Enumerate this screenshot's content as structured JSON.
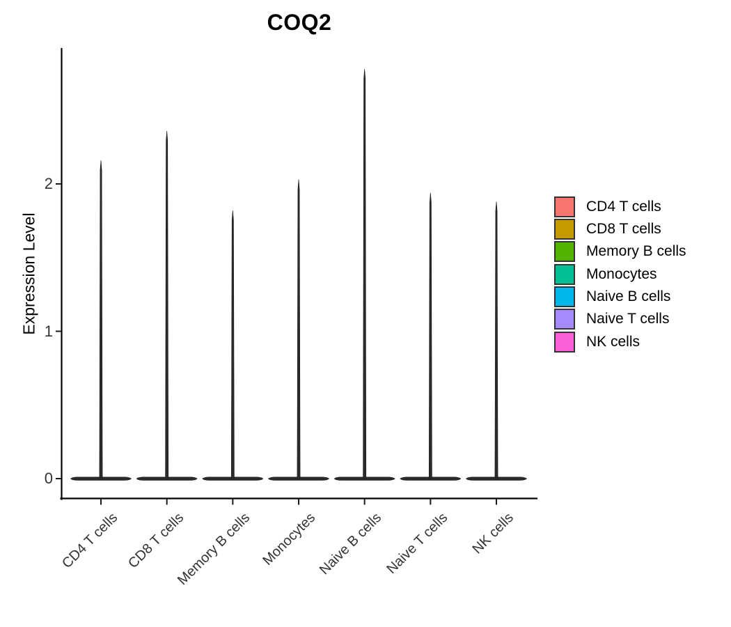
{
  "title": "COQ2",
  "axes": {
    "y_label": "Expression Level",
    "y_ticks": [
      "0",
      "1",
      "2"
    ],
    "x_tick_labels": [
      "CD4 T cells",
      "CD8 T cells",
      "Memory B cells",
      "Monocytes",
      "Naive B cells",
      "Naive T cells",
      "NK cells"
    ]
  },
  "legend": {
    "items": [
      {
        "label": "CD4 T cells",
        "color": "#F8766D"
      },
      {
        "label": "CD8 T cells",
        "color": "#C49A00"
      },
      {
        "label": "Memory B cells",
        "color": "#53B400"
      },
      {
        "label": "Monocytes",
        "color": "#00C094"
      },
      {
        "label": "Naive B cells",
        "color": "#00B6EB"
      },
      {
        "label": "Naive T cells",
        "color": "#A58AFF"
      },
      {
        "label": "NK cells",
        "color": "#FB61D7"
      }
    ]
  },
  "chart_data": {
    "type": "violin",
    "title": "COQ2",
    "xlabel": "",
    "ylabel": "Expression Level",
    "categories": [
      "CD4 T cells",
      "CD8 T cells",
      "Memory B cells",
      "Monocytes",
      "Naive B cells",
      "Naive T cells",
      "NK cells"
    ],
    "series": [
      {
        "name": "max_expression",
        "values": [
          2.16,
          2.36,
          1.82,
          2.03,
          2.78,
          1.94,
          1.88
        ]
      },
      {
        "name": "mode_expression",
        "values": [
          0,
          0,
          0,
          0,
          0,
          0,
          0
        ]
      }
    ],
    "shape_note": "Each violin is a wide flat base at 0 (nearly all cells have zero expression) with an extremely thin spike tapering up to max_expression.",
    "yticks": [
      0,
      1,
      2
    ],
    "ylim": [
      -0.05,
      2.85
    ],
    "grid": false,
    "legend_position": "right",
    "violin_fill": "#2b2b2b",
    "colors": [
      "#F8766D",
      "#C49A00",
      "#53B400",
      "#00C094",
      "#00B6EB",
      "#A58AFF",
      "#FB61D7"
    ]
  }
}
